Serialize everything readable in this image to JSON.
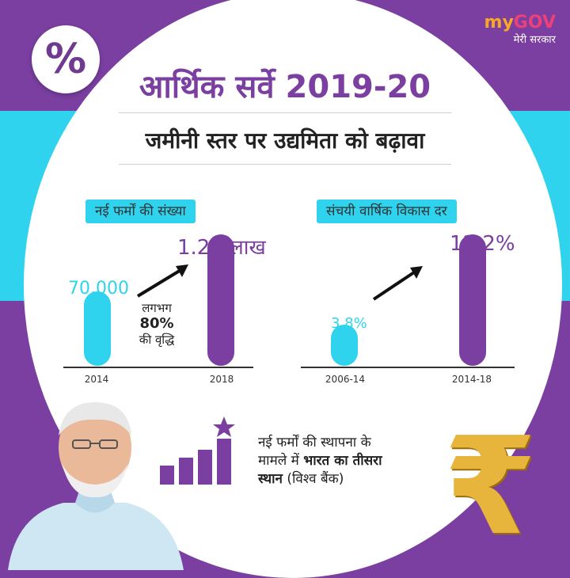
{
  "header": {
    "logo_my": "my",
    "logo_gov": "GOV",
    "logo_sub": "मेरी सरकार",
    "percent_symbol": "%",
    "title": "आर्थिक सर्वे 2019-20",
    "subtitle": "जमीनी स्तर पर उद्यमिता को बढ़ावा"
  },
  "chart_data": [
    {
      "type": "bar",
      "title": "नई फर्मों की संख्या",
      "categories": [
        "2014",
        "2018"
      ],
      "values": [
        70000,
        124000
      ],
      "value_labels": [
        "70,000",
        "1.24 लाख"
      ],
      "annotation": {
        "line1": "लगभग",
        "line2": "80%",
        "line3": "की वृद्धि"
      },
      "colors": [
        "#2fd3ee",
        "#7a3fa0"
      ]
    },
    {
      "type": "bar",
      "title": "संचयी वार्षिक विकास दर",
      "categories": [
        "2006-14",
        "2014-18"
      ],
      "values": [
        3.8,
        12.2
      ],
      "value_labels": [
        "3.8%",
        "12.2%"
      ],
      "colors": [
        "#2fd3ee",
        "#7a3fa0"
      ]
    }
  ],
  "footer": {
    "note_line1": "नई फर्मों की स्थापना के",
    "note_line2_plain": "मामले में ",
    "note_line2_bold": "भारत का तीसरा",
    "note_line3_bold": "स्थान",
    "note_line3_plain": " (विश्व बैंक)",
    "rupee_symbol": "₹"
  },
  "colors": {
    "purple": "#7a3fa0",
    "cyan": "#2fd3ee",
    "gold": "#e7b53b"
  },
  "icons": [
    "percent-icon",
    "bar-chart-star-icon",
    "rupee-icon",
    "arrow-up-right-icon"
  ]
}
